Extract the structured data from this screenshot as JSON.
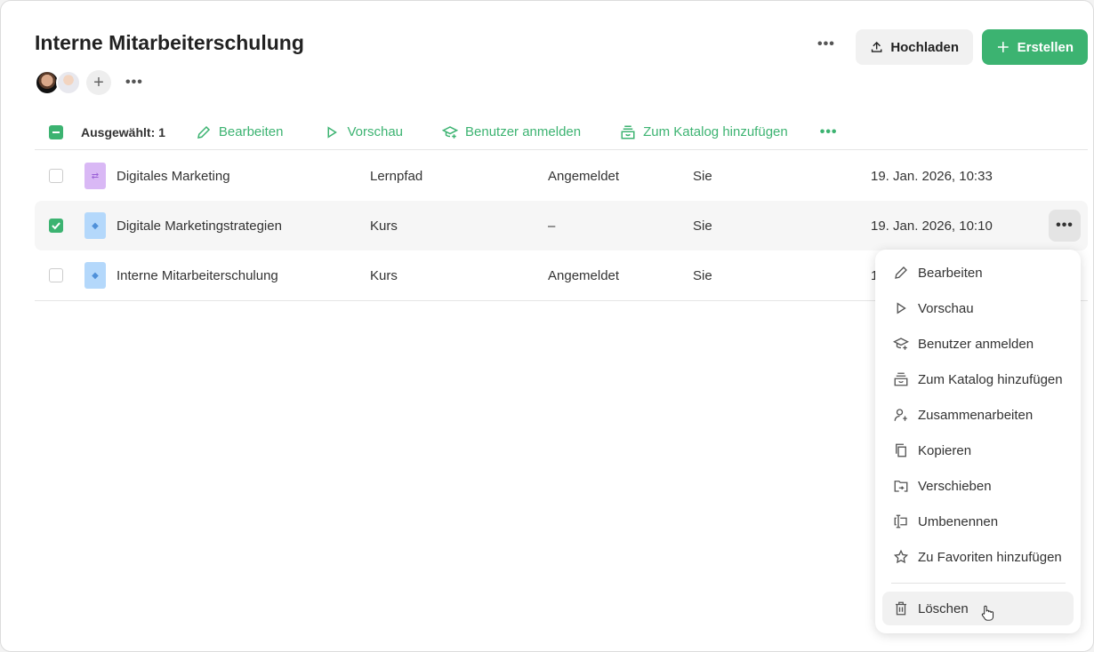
{
  "header": {
    "title": "Interne Mitarbeiterschulung",
    "upload_label": "Hochladen",
    "create_label": "Erstellen",
    "more_icon": "more-horizontal-icon"
  },
  "colors": {
    "accent": "#3cb371",
    "learning_path": "#d9b8f5",
    "course": "#b4d8fb"
  },
  "toolbar": {
    "selected": "Ausgewählt: 1",
    "actions": [
      {
        "label": "Bearbeiten",
        "icon": "pencil-icon"
      },
      {
        "label": "Vorschau",
        "icon": "play-icon"
      },
      {
        "label": "Benutzer anmelden",
        "icon": "graduation-cap-plus-icon"
      },
      {
        "label": "Zum Katalog hinzufügen",
        "icon": "catalog-icon"
      }
    ]
  },
  "rows": [
    {
      "name": "Digitales Marketing",
      "type": "Lernpfad",
      "status": "Angemeldet",
      "owner": "Sie",
      "date": "19. Jan. 2026, 10:33",
      "checked": false,
      "icon": "learning-path-icon"
    },
    {
      "name": "Digitale Marketingstrategien",
      "type": "Kurs",
      "status": "–",
      "owner": "Sie",
      "date": "19. Jan. 2026, 10:10",
      "checked": true,
      "icon": "course-icon"
    },
    {
      "name": "Interne Mitarbeiterschulung",
      "type": "Kurs",
      "status": "Angemeldet",
      "owner": "Sie",
      "date": "1",
      "checked": false,
      "icon": "course-icon"
    }
  ],
  "menu": {
    "items": [
      "Bearbeiten",
      "Vorschau",
      "Benutzer anmelden",
      "Zum Katalog hinzufügen",
      "Zusammenarbeiten",
      "Kopieren",
      "Verschieben",
      "Umbenennen",
      "Zu Favoriten hinzufügen"
    ],
    "delete": "Löschen"
  }
}
